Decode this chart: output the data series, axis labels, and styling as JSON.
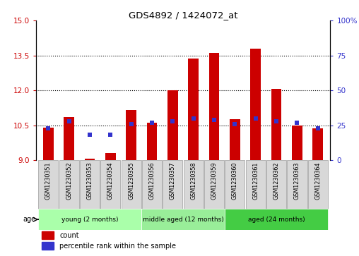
{
  "title": "GDS4892 / 1424072_at",
  "samples": [
    "GSM1230351",
    "GSM1230352",
    "GSM1230353",
    "GSM1230354",
    "GSM1230355",
    "GSM1230356",
    "GSM1230357",
    "GSM1230358",
    "GSM1230359",
    "GSM1230360",
    "GSM1230361",
    "GSM1230362",
    "GSM1230363",
    "GSM1230364"
  ],
  "count_values": [
    10.4,
    10.85,
    9.05,
    9.3,
    11.15,
    10.6,
    12.0,
    13.35,
    13.6,
    10.75,
    13.8,
    12.05,
    10.5,
    10.35
  ],
  "percentile_values": [
    23,
    28,
    18,
    18,
    26,
    27,
    28,
    30,
    29,
    26,
    30,
    28,
    27,
    23
  ],
  "y_min": 9,
  "y_max": 15,
  "y_ticks": [
    9,
    10.5,
    12,
    13.5,
    15
  ],
  "y2_ticks": [
    0,
    25,
    50,
    75,
    100
  ],
  "bar_color": "#cc0000",
  "percentile_color": "#3333cc",
  "background_color": "#ffffff",
  "group_labels": [
    "young (2 months)",
    "middle aged (12 months)",
    "aged (24 months)"
  ],
  "group_ranges": [
    [
      0,
      4
    ],
    [
      5,
      8
    ],
    [
      9,
      13
    ]
  ],
  "group_colors": [
    "#aaffaa",
    "#99ee99",
    "#44cc44"
  ],
  "age_label": "age",
  "legend_count": "count",
  "legend_percentile": "percentile rank within the sample",
  "bar_width": 0.5
}
